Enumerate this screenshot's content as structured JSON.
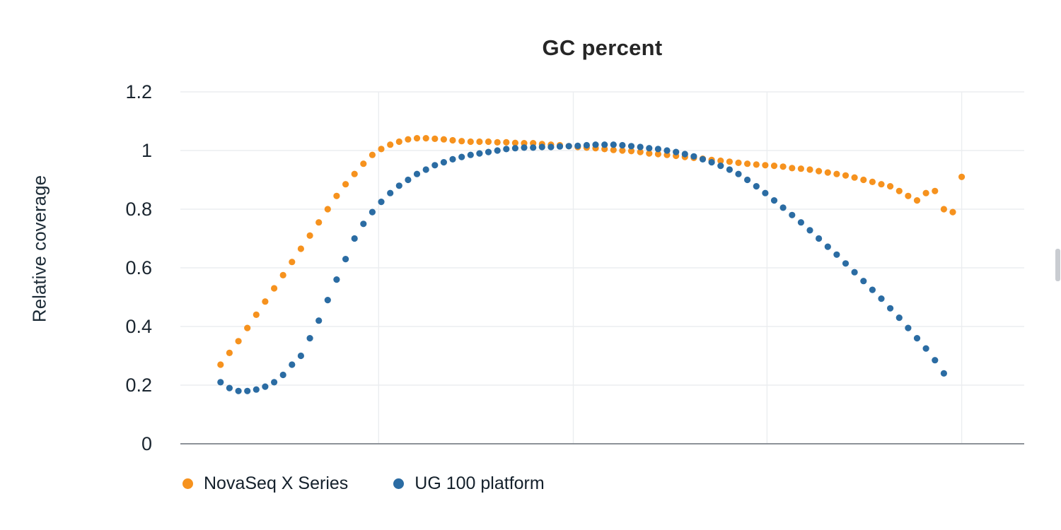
{
  "chart_data": {
    "type": "scatter",
    "title": "GC percent",
    "xlabel": "",
    "ylabel": "Relative coverage",
    "ylim": [
      0,
      1.2
    ],
    "yticks": [
      0,
      0.2,
      0.4,
      0.6,
      0.8,
      1,
      1.2
    ],
    "ytick_labels": [
      "0",
      "0.2",
      "0.4",
      "0.6",
      "0.8",
      "1",
      "1.2"
    ],
    "xlim": [
      5.5,
      100
    ],
    "xticks_visible": false,
    "grid": true,
    "xgrid": [
      27.7,
      49.5,
      71.2,
      93
    ],
    "legend_position": "bottom",
    "marker": "circle",
    "colors": {
      "background": "#ffffff",
      "gridline": "#ebedf0",
      "axis": "#8d9299",
      "text": "#1b2630"
    },
    "series": [
      {
        "name": "NovaSeq X Series",
        "color": "#f6921e",
        "x": [
          10,
          11,
          12,
          13,
          14,
          15,
          16,
          17,
          18,
          19,
          20,
          21,
          22,
          23,
          24,
          25,
          26,
          27,
          28,
          29,
          30,
          31,
          32,
          33,
          34,
          35,
          36,
          37,
          38,
          39,
          40,
          41,
          42,
          43,
          44,
          45,
          46,
          47,
          48,
          49,
          50,
          51,
          52,
          53,
          54,
          55,
          56,
          57,
          58,
          59,
          60,
          61,
          62,
          63,
          64,
          65,
          66,
          67,
          68,
          69,
          70,
          71,
          72,
          73,
          74,
          75,
          76,
          77,
          78,
          79,
          80,
          81,
          82,
          83,
          84,
          85,
          86,
          87,
          88,
          89,
          90,
          91,
          92,
          93
        ],
        "y": [
          0.27,
          0.31,
          0.35,
          0.395,
          0.44,
          0.485,
          0.53,
          0.575,
          0.62,
          0.665,
          0.71,
          0.755,
          0.8,
          0.845,
          0.885,
          0.92,
          0.955,
          0.985,
          1.005,
          1.02,
          1.03,
          1.038,
          1.042,
          1.042,
          1.04,
          1.038,
          1.035,
          1.032,
          1.03,
          1.03,
          1.03,
          1.028,
          1.028,
          1.026,
          1.025,
          1.025,
          1.022,
          1.02,
          1.018,
          1.015,
          1.012,
          1.01,
          1.008,
          1.005,
          1.002,
          1.0,
          0.998,
          0.995,
          0.99,
          0.988,
          0.985,
          0.982,
          0.978,
          0.975,
          0.972,
          0.968,
          0.965,
          0.962,
          0.958,
          0.955,
          0.952,
          0.95,
          0.948,
          0.945,
          0.94,
          0.938,
          0.935,
          0.93,
          0.925,
          0.92,
          0.915,
          0.908,
          0.9,
          0.893,
          0.885,
          0.878,
          0.862,
          0.845,
          0.83,
          0.855,
          0.862,
          0.8,
          0.79,
          0.91
        ]
      },
      {
        "name": "UG 100 platform",
        "color": "#2b6ca3",
        "x": [
          10,
          11,
          12,
          13,
          14,
          15,
          16,
          17,
          18,
          19,
          20,
          21,
          22,
          23,
          24,
          25,
          26,
          27,
          28,
          29,
          30,
          31,
          32,
          33,
          34,
          35,
          36,
          37,
          38,
          39,
          40,
          41,
          42,
          43,
          44,
          45,
          46,
          47,
          48,
          49,
          50,
          51,
          52,
          53,
          54,
          55,
          56,
          57,
          58,
          59,
          60,
          61,
          62,
          63,
          64,
          65,
          66,
          67,
          68,
          69,
          70,
          71,
          72,
          73,
          74,
          75,
          76,
          77,
          78,
          79,
          80,
          81,
          82,
          83,
          84,
          85,
          86,
          87,
          88,
          89,
          90,
          91
        ],
        "y": [
          0.21,
          0.19,
          0.18,
          0.18,
          0.185,
          0.195,
          0.21,
          0.235,
          0.27,
          0.3,
          0.36,
          0.42,
          0.49,
          0.56,
          0.63,
          0.7,
          0.75,
          0.79,
          0.825,
          0.855,
          0.88,
          0.9,
          0.92,
          0.935,
          0.95,
          0.96,
          0.97,
          0.978,
          0.985,
          0.99,
          0.995,
          1.0,
          1.005,
          1.008,
          1.01,
          1.01,
          1.012,
          1.012,
          1.014,
          1.015,
          1.016,
          1.018,
          1.02,
          1.02,
          1.02,
          1.018,
          1.015,
          1.012,
          1.008,
          1.005,
          1.0,
          0.995,
          0.988,
          0.98,
          0.97,
          0.96,
          0.948,
          0.935,
          0.92,
          0.9,
          0.878,
          0.855,
          0.83,
          0.805,
          0.78,
          0.755,
          0.728,
          0.7,
          0.672,
          0.645,
          0.615,
          0.585,
          0.555,
          0.525,
          0.495,
          0.462,
          0.43,
          0.395,
          0.36,
          0.325,
          0.285,
          0.24
        ]
      }
    ]
  }
}
